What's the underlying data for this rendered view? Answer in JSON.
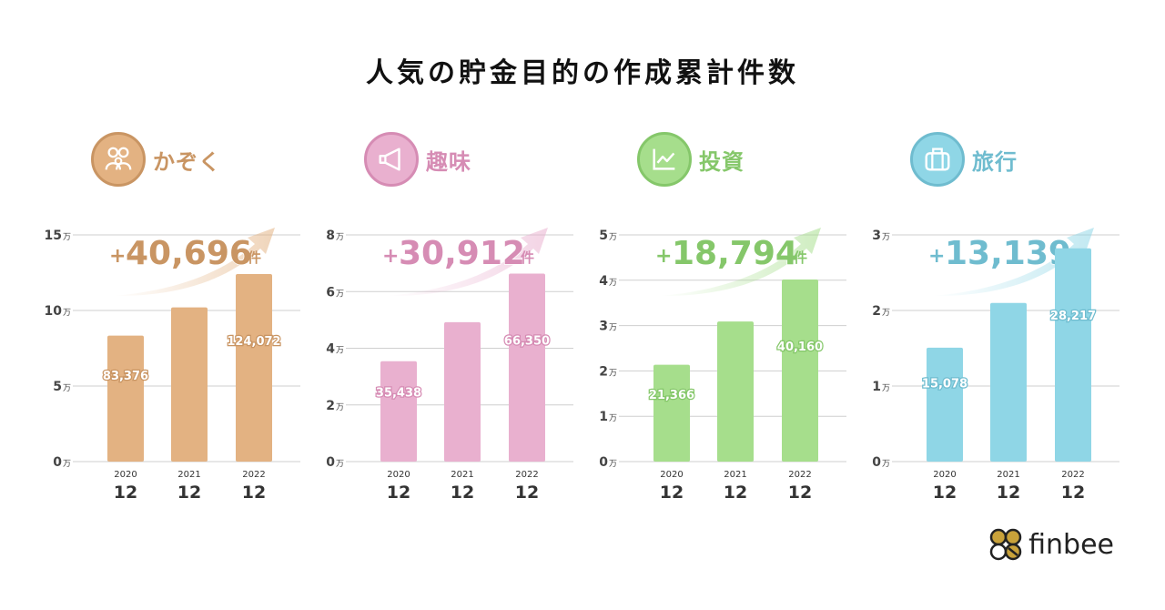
{
  "title": "人気の貯金目的の作成累計件数",
  "brand": "finbee",
  "unit_suffix": "万",
  "increase_suffix": "件",
  "increase_prefix": "+",
  "chart_data": [
    {
      "type": "bar",
      "category_name": "かぞく",
      "icon": "family-icon",
      "color": "#e3b282",
      "dark_color": "#c99563",
      "increase_label": "40,696",
      "x_years": [
        "2020",
        "2021",
        "2022"
      ],
      "x_months": [
        "12",
        "12",
        "12"
      ],
      "values": [
        83376,
        102000,
        124072
      ],
      "data_labels": [
        "83,376",
        "",
        "124,072"
      ],
      "y_ticks": [
        "0",
        "5",
        "10",
        "15"
      ],
      "ylim": [
        0,
        150000
      ]
    },
    {
      "type": "bar",
      "category_name": "趣味",
      "icon": "megaphone-icon",
      "color": "#e9b0cf",
      "dark_color": "#d68cb4",
      "increase_label": "30,912",
      "x_years": [
        "2020",
        "2021",
        "2022"
      ],
      "x_months": [
        "12",
        "12",
        "12"
      ],
      "values": [
        35438,
        49200,
        66350
      ],
      "data_labels": [
        "35,438",
        "",
        "66,350"
      ],
      "y_ticks": [
        "0",
        "2",
        "4",
        "6",
        "8"
      ],
      "ylim": [
        0,
        80000
      ]
    },
    {
      "type": "bar",
      "category_name": "投資",
      "icon": "line-chart-icon",
      "color": "#a6de8c",
      "dark_color": "#85c76a",
      "increase_label": "18,794",
      "x_years": [
        "2020",
        "2021",
        "2022"
      ],
      "x_months": [
        "12",
        "12",
        "12"
      ],
      "values": [
        21366,
        30900,
        40160
      ],
      "data_labels": [
        "21,366",
        "",
        "40,160"
      ],
      "y_ticks": [
        "0",
        "1",
        "2",
        "3",
        "4",
        "5"
      ],
      "ylim": [
        0,
        50000
      ]
    },
    {
      "type": "bar",
      "category_name": "旅行",
      "icon": "suitcase-icon",
      "color": "#8fd6e6",
      "dark_color": "#6fbccf",
      "increase_label": "13,139",
      "x_years": [
        "2020",
        "2021",
        "2022"
      ],
      "x_months": [
        "12",
        "12",
        "12"
      ],
      "values": [
        15078,
        21000,
        28217
      ],
      "data_labels": [
        "15,078",
        "",
        "28,217"
      ],
      "y_ticks": [
        "0",
        "1",
        "2",
        "3"
      ],
      "ylim": [
        0,
        30000
      ]
    }
  ]
}
